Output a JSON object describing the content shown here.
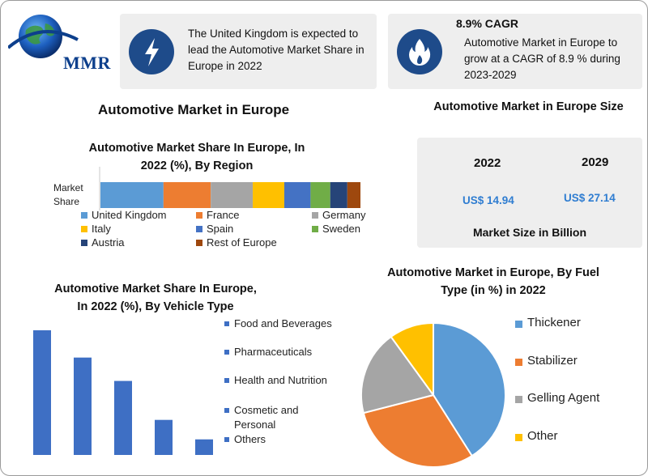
{
  "brand": {
    "logo_text": "MMR"
  },
  "info_boxes": [
    {
      "text": "The United Kingdom is expected to lead the Automotive Market Share in Europe in 2022",
      "icon": "lightning-icon"
    },
    {
      "title": "8.9% CAGR",
      "text": "Automotive Market in Europe to grow at a CAGR of 8.9 % during 2023-2029",
      "icon": "flame-icon"
    }
  ],
  "main_title": "Automotive Market in Europe",
  "market_size": {
    "title": "Automotive Market in Europe Size",
    "years": [
      "2022",
      "2029"
    ],
    "values": [
      "US$ 14.94",
      "US$ 27.14"
    ],
    "caption": "Market Size in Billion",
    "value_color": "#2f7dd1"
  },
  "chart_data": [
    {
      "type": "bar",
      "orientation": "stacked-horizontal",
      "title": "Automotive Market Share In Europe, In 2022 (%), By Region",
      "row_label": "Market Share",
      "series": [
        {
          "name": "United Kingdom",
          "value": 24,
          "color": "#5b9bd5"
        },
        {
          "name": "France",
          "value": 18,
          "color": "#ed7d31"
        },
        {
          "name": "Germany",
          "value": 16,
          "color": "#a5a5a5"
        },
        {
          "name": "Italy",
          "value": 12,
          "color": "#ffc000"
        },
        {
          "name": "Spain",
          "value": 10,
          "color": "#4472c4"
        },
        {
          "name": "Sweden",
          "value": 7.5,
          "color": "#70ad47"
        },
        {
          "name": "Austria",
          "value": 6.5,
          "color": "#264478"
        },
        {
          "name": "Rest of Europe",
          "value": 5,
          "color": "#9e480e"
        }
      ],
      "legend": "bottom"
    },
    {
      "type": "bar",
      "title": "Automotive Market Share In Europe, In 2022 (%), By Vehicle Type",
      "categories": [
        "Food and Beverages",
        "Pharmaceuticals",
        "Health and Nutrition",
        "Cosmetic and Personal",
        "Others"
      ],
      "values": [
        32,
        25,
        19,
        9,
        4
      ],
      "ylim": [
        0,
        32
      ],
      "color": "#3e6fc4",
      "legend": "right"
    },
    {
      "type": "pie",
      "title": "Automotive Market in Europe, By Fuel Type (in %) in 2022",
      "series": [
        {
          "name": "Thickener",
          "value": 41,
          "color": "#5b9bd5"
        },
        {
          "name": "Stabilizer",
          "value": 30,
          "color": "#ed7d31"
        },
        {
          "name": "Gelling Agent",
          "value": 19,
          "color": "#a5a5a5"
        },
        {
          "name": "Other",
          "value": 10,
          "color": "#ffc000"
        }
      ],
      "start_angle_deg": 0,
      "legend": "right"
    }
  ]
}
